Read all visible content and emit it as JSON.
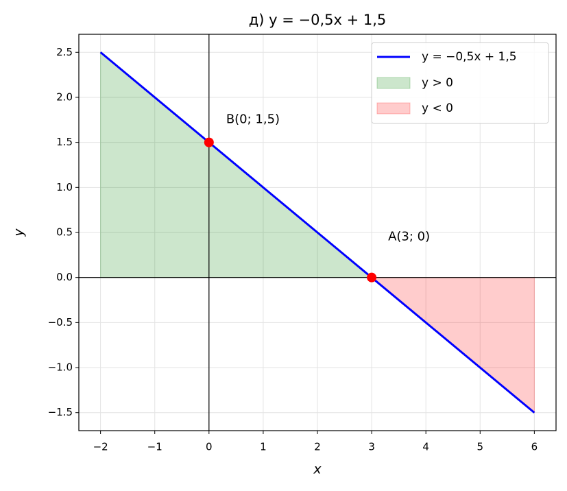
{
  "chart_data": {
    "type": "line",
    "title": "д) y = −0,5x + 1,5",
    "x_label": "x",
    "y_label": "y",
    "series": [
      {
        "name": "y = −0,5x + 1,5",
        "color": "#0000ff",
        "x": [
          -2,
          3,
          6
        ],
        "values": [
          2.5,
          0,
          -1.5
        ]
      }
    ],
    "fills": [
      {
        "name": "y > 0",
        "color": "#008000",
        "x": [
          -2,
          3
        ],
        "values": [
          2.5,
          0
        ]
      },
      {
        "name": "y < 0",
        "color": "#ff0000",
        "x": [
          3,
          6
        ],
        "values": [
          0,
          -1.5
        ]
      }
    ],
    "points": [
      {
        "label": "B(0; 1,5)",
        "x": 0,
        "y": 1.5,
        "color": "#ff0000"
      },
      {
        "label": "A(3; 0)",
        "x": 3,
        "y": 0,
        "color": "#ff0000"
      }
    ],
    "hlines": [
      0
    ],
    "vlines": [
      0
    ],
    "xlim": [
      -2.4,
      6.4
    ],
    "ylim": [
      -1.7,
      2.7
    ],
    "xticks": [
      {
        "value": -2,
        "label": "−2"
      },
      {
        "value": -1,
        "label": "−1"
      },
      0,
      1,
      2,
      3,
      4,
      5,
      6
    ],
    "yticks": [
      {
        "value": -1.5,
        "label": "−1.5"
      },
      {
        "value": -1,
        "label": "−1.0"
      },
      {
        "value": -0.5,
        "label": "−0.5"
      },
      {
        "value": 0,
        "label": "0.0"
      },
      0.5,
      {
        "value": 1,
        "label": "1.0"
      },
      1.5,
      {
        "value": 2,
        "label": "2.0"
      },
      2.5
    ],
    "grid": true,
    "legend": "upper right"
  }
}
